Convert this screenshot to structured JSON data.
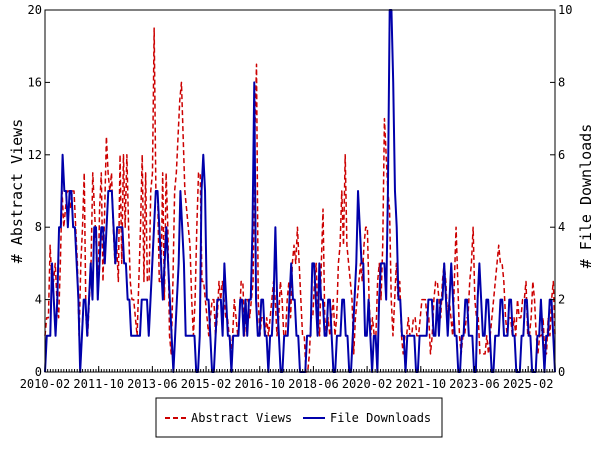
{
  "chart_data": {
    "type": "line",
    "title": "",
    "ylabel_left": "# Abstract Views",
    "ylabel_right": "# File Downloads",
    "ylim_left": [
      0,
      20
    ],
    "ylim_right": [
      0,
      10
    ],
    "yticks_left": [
      "0",
      "4",
      "8",
      "12",
      "16",
      "20"
    ],
    "yticks_right": [
      "0",
      "2",
      "4",
      "6",
      "8",
      "10"
    ],
    "x_start": "2010-02",
    "x_end": "2025-12",
    "xticks": [
      "2010-02",
      "2011-10",
      "2013-06",
      "2015-02",
      "2016-10",
      "2018-06",
      "2020-02",
      "2021-10",
      "2023-06",
      "2025-02"
    ],
    "grid": false,
    "legend_position": "bottom",
    "series": [
      {
        "name": "Abstract Views",
        "axis": "left",
        "color": "#cc0000",
        "style": "dashed",
        "values": [
          2,
          3,
          3,
          7,
          5,
          5,
          6,
          4,
          3,
          6,
          10,
          8,
          9,
          10,
          10,
          9,
          10,
          10,
          8,
          6,
          2,
          6,
          8,
          11,
          3,
          2,
          4,
          6,
          11,
          9,
          7,
          4,
          9,
          11,
          5,
          9,
          13,
          11,
          10,
          11,
          8,
          6,
          7,
          5,
          12,
          6,
          12,
          8,
          12,
          8,
          5,
          4,
          4,
          3,
          2,
          5,
          8,
          12,
          5,
          11,
          5,
          5,
          10,
          11,
          19,
          10,
          10,
          5,
          5,
          11,
          4,
          11,
          8,
          2,
          1,
          5,
          10,
          11,
          13,
          15,
          16,
          13,
          10,
          9,
          8,
          7,
          4,
          2,
          4,
          8,
          11,
          11,
          5,
          5,
          4,
          3,
          2,
          3,
          4,
          4,
          2,
          3,
          5,
          4,
          5,
          4,
          3,
          3,
          2,
          1,
          2,
          4,
          3,
          2,
          3,
          5,
          5,
          2,
          4,
          4,
          3,
          4,
          5,
          13,
          17,
          4,
          2,
          3,
          3,
          2,
          3,
          2,
          3,
          4,
          5,
          4,
          2,
          3,
          5,
          4,
          2,
          2,
          4,
          5,
          3,
          6,
          7,
          6,
          8,
          6,
          4,
          2,
          2,
          0,
          0,
          1,
          3,
          3,
          5,
          6,
          3,
          2,
          6,
          9,
          3,
          2,
          3,
          2,
          3,
          4,
          2,
          3,
          6,
          7,
          10,
          7,
          12,
          7,
          6,
          5,
          4,
          1,
          3,
          4,
          5,
          6,
          5,
          7,
          8,
          8,
          4,
          2,
          3,
          2,
          2,
          5,
          6,
          4,
          7,
          14,
          12,
          10,
          9,
          4,
          2,
          4,
          6,
          4,
          5,
          2,
          1,
          2,
          2,
          3,
          2,
          2,
          3,
          3,
          2,
          2,
          3,
          4,
          4,
          4,
          3,
          3,
          1,
          2,
          4,
          5,
          5,
          4,
          3,
          5,
          6,
          5,
          3,
          4,
          3,
          2,
          5,
          8,
          5,
          2,
          1,
          2,
          2,
          3,
          3,
          5,
          6,
          8,
          4,
          3,
          3,
          1,
          1,
          1,
          1,
          2,
          1,
          2,
          3,
          4,
          5,
          6,
          7,
          6,
          6,
          5,
          3,
          2,
          3,
          3,
          2,
          3,
          2,
          4,
          3,
          3,
          4,
          4,
          5,
          2,
          2,
          3,
          5,
          4,
          2,
          1,
          2,
          2,
          3,
          1,
          1,
          3,
          2,
          4,
          5,
          2
        ]
      },
      {
        "name": "File Downloads",
        "axis": "right",
        "color": "#0000aa",
        "style": "solid",
        "values": [
          0,
          1,
          1,
          1,
          3,
          2,
          1,
          2,
          4,
          4,
          6,
          5,
          5,
          4,
          5,
          5,
          4,
          4,
          3,
          2,
          0,
          1,
          2,
          2,
          1,
          2,
          3,
          2,
          4,
          4,
          2,
          3,
          4,
          4,
          3,
          4,
          5,
          5,
          5,
          4,
          3,
          4,
          4,
          4,
          4,
          3,
          3,
          2,
          2,
          1,
          1,
          1,
          1,
          1,
          1,
          2,
          2,
          2,
          2,
          1,
          2,
          3,
          4,
          5,
          5,
          4,
          3,
          2,
          3,
          4,
          3,
          2,
          1,
          0,
          1,
          2,
          3,
          5,
          4,
          3,
          1,
          1,
          1,
          1,
          1,
          1,
          0,
          0,
          1,
          5,
          6,
          5,
          2,
          2,
          1,
          0,
          0,
          1,
          2,
          2,
          2,
          1,
          3,
          2,
          1,
          1,
          0,
          1,
          1,
          1,
          1,
          2,
          2,
          1,
          2,
          1,
          2,
          2,
          4,
          8,
          2,
          1,
          1,
          2,
          2,
          1,
          1,
          0,
          1,
          1,
          2,
          4,
          2,
          1,
          0,
          0,
          1,
          1,
          1,
          2,
          3,
          2,
          2,
          1,
          1,
          0,
          0,
          0,
          0,
          1,
          1,
          1,
          3,
          3,
          2,
          1,
          3,
          2,
          2,
          1,
          1,
          2,
          2,
          1,
          0,
          0,
          1,
          1,
          1,
          2,
          2,
          1,
          1,
          0,
          0,
          1,
          2,
          3,
          5,
          4,
          3,
          3,
          1,
          1,
          2,
          1,
          0,
          1,
          1,
          0,
          2,
          3,
          3,
          3,
          2,
          5,
          10,
          10,
          8,
          5,
          4,
          2,
          2,
          1,
          1,
          0,
          1,
          1,
          1,
          1,
          1,
          0,
          0,
          1,
          1,
          1,
          1,
          1,
          2,
          2,
          2,
          1,
          1,
          2,
          1,
          2,
          2,
          3,
          2,
          1,
          2,
          3,
          2,
          1,
          1,
          0,
          0,
          1,
          1,
          2,
          2,
          1,
          1,
          1,
          0,
          0,
          2,
          3,
          2,
          1,
          1,
          2,
          2,
          1,
          0,
          0,
          1,
          1,
          1,
          2,
          2,
          1,
          1,
          1,
          2,
          2,
          1,
          1,
          0,
          0,
          0,
          1,
          1,
          2,
          2,
          1,
          1,
          0,
          0,
          0,
          1,
          1,
          2,
          1,
          0,
          1,
          1,
          2,
          2,
          1,
          0
        ]
      }
    ]
  }
}
